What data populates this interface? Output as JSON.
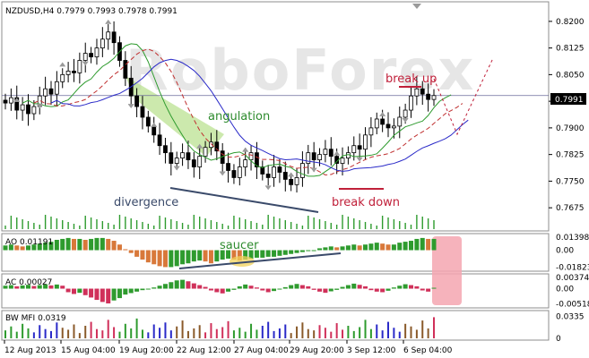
{
  "chart_data": [
    {
      "type": "candlestick",
      "title": "NZDUSD,H4",
      "ohlc": [
        "0.7979",
        "0.7993",
        "0.7978",
        "0.7991"
      ],
      "current_price": "0.7991",
      "ylim": [
        0.763,
        0.824
      ],
      "y_ticks": [
        "0.8200",
        "0.8125",
        "0.8050",
        "0.7975",
        "0.7900",
        "0.7825",
        "0.7750",
        "0.7675"
      ],
      "x_ticks": [
        "12 Aug 2013",
        "15 Aug 04:00",
        "19 Aug 20:00",
        "22 Aug 12:00",
        "27 Aug 04:00",
        "29 Aug 20:00",
        "3 Sep 12:00",
        "6 Sep 04:00"
      ],
      "close": [
        0.797,
        0.7985,
        0.795,
        0.7965,
        0.794,
        0.796,
        0.799,
        0.801,
        0.7995,
        0.803,
        0.805,
        0.806,
        0.8055,
        0.809,
        0.811,
        0.81,
        0.8125,
        0.815,
        0.817,
        0.814,
        0.809,
        0.804,
        0.799,
        0.796,
        0.793,
        0.7905,
        0.788,
        0.785,
        0.783,
        0.78,
        0.7815,
        0.783,
        0.781,
        0.779,
        0.782,
        0.7845,
        0.786,
        0.7835,
        0.78,
        0.778,
        0.776,
        0.779,
        0.781,
        0.783,
        0.779,
        0.777,
        0.776,
        0.779,
        0.7775,
        0.7755,
        0.774,
        0.776,
        0.78,
        0.783,
        0.781,
        0.7825,
        0.784,
        0.782,
        0.78,
        0.7815,
        0.783,
        0.785,
        0.784,
        0.788,
        0.79,
        0.7925,
        0.791,
        0.79,
        0.7905,
        0.793,
        0.795,
        0.799,
        0.801,
        0.7995,
        0.798,
        0.7991
      ],
      "annotations": [
        {
          "text": "break up",
          "color": "#c0203a"
        },
        {
          "text": "angulation",
          "color": "#2e8b2e"
        },
        {
          "text": "divergence",
          "color": "#3a4a6a"
        },
        {
          "text": "break down",
          "color": "#c0203a"
        }
      ],
      "watermark": "RoboForex",
      "colors": {
        "ma_fast": "#2e9b2e",
        "ma_mid": "#c03030",
        "ma_slow": "#2a2ac8",
        "annotation_red": "#c0203a",
        "highlight": "#b6e08a",
        "price_box": "#000000"
      }
    },
    {
      "type": "bar",
      "title": "AO",
      "value": "0.01191",
      "y_ticks": [
        "0.01398",
        "0.00",
        "-0.01823"
      ],
      "ylim": [
        -0.0195,
        0.0148
      ],
      "values": [
        0.005,
        0.006,
        0.005,
        0.004,
        0.005,
        0.006,
        0.007,
        0.008,
        0.009,
        0.011,
        0.012,
        0.013,
        0.012,
        0.012,
        0.011,
        0.012,
        0.013,
        0.013,
        0.012,
        0.01,
        0.006,
        0.001,
        -0.003,
        -0.007,
        -0.01,
        -0.013,
        -0.015,
        -0.017,
        -0.018,
        -0.018,
        -0.017,
        -0.015,
        -0.014,
        -0.012,
        -0.011,
        -0.012,
        -0.014,
        -0.012,
        -0.01,
        -0.009,
        -0.01,
        -0.011,
        -0.01,
        -0.009,
        -0.008,
        -0.008,
        -0.007,
        -0.007,
        -0.006,
        -0.005,
        -0.004,
        -0.003,
        -0.002,
        -0.001,
        0.0,
        0.002,
        0.003,
        0.004,
        0.003,
        0.004,
        0.005,
        0.006,
        0.005,
        0.006,
        0.007,
        0.008,
        0.007,
        0.006,
        0.006,
        0.008,
        0.009,
        0.01,
        0.012,
        0.013,
        0.012,
        0.012
      ],
      "annotation": "saucer",
      "colors": {
        "up": "#2e9b2e",
        "down": "#d8783a",
        "highlight": "#f2d25a",
        "box": "#f4a6b0"
      }
    },
    {
      "type": "bar",
      "title": "AC",
      "value": "0.00027",
      "y_ticks": [
        "0.00374",
        "0.00",
        "-0.00518"
      ],
      "ylim": [
        -0.0056,
        0.0041
      ],
      "values": [
        0.001,
        0.0012,
        0.0008,
        0.0011,
        0.0013,
        0.0009,
        0.0012,
        0.0015,
        0.0011,
        0.0014,
        0.001,
        -0.0012,
        -0.0018,
        -0.0014,
        -0.0022,
        -0.003,
        -0.0038,
        -0.0045,
        -0.005,
        -0.004,
        -0.0032,
        -0.002,
        -0.0015,
        -0.001,
        -0.0005,
        -0.0002,
        0.0004,
        0.001,
        0.0016,
        0.0022,
        0.0028,
        0.003,
        0.0025,
        0.0018,
        0.0012,
        0.0006,
        -0.0006,
        -0.0012,
        -0.0016,
        -0.001,
        -0.0004,
        0.0008,
        0.0014,
        0.001,
        0.0004,
        -0.0006,
        -0.0012,
        -0.0008,
        -0.0003,
        0.0005,
        0.0012,
        0.0016,
        0.0012,
        0.0008,
        -0.0004,
        -0.001,
        -0.0014,
        -0.0009,
        -0.0004,
        0.0006,
        0.0012,
        0.0017,
        0.0013,
        0.0008,
        -0.0005,
        -0.001,
        -0.0012,
        -0.0007,
        0.0004,
        0.001,
        0.0015,
        0.0012,
        0.0008,
        -0.0006,
        -0.001,
        0.0003
      ],
      "colors": {
        "up": "#2e9b2e",
        "down": "#d0305a"
      }
    },
    {
      "type": "bar",
      "title": "BW MFI",
      "value": "0.0319",
      "y_ticks": [
        "0.0335",
        "0"
      ],
      "ylim": [
        0,
        0.038
      ],
      "values": [
        0.012,
        0.018,
        0.01,
        0.022,
        0.015,
        0.009,
        0.02,
        0.014,
        0.011,
        0.024,
        0.016,
        0.013,
        0.021,
        0.008,
        0.019,
        0.025,
        0.014,
        0.012,
        0.028,
        0.017,
        0.01,
        0.022,
        0.015,
        0.03,
        0.013,
        0.009,
        0.021,
        0.016,
        0.024,
        0.012,
        0.018,
        0.027,
        0.011,
        0.015,
        0.02,
        0.009,
        0.023,
        0.014,
        0.017,
        0.026,
        0.012,
        0.016,
        0.01,
        0.022,
        0.013,
        0.019,
        0.025,
        0.011,
        0.015,
        0.021,
        0.008,
        0.018,
        0.024,
        0.014,
        0.012,
        0.02,
        0.016,
        0.01,
        0.023,
        0.013,
        0.019,
        0.011,
        0.017,
        0.028,
        0.014,
        0.021,
        0.012,
        0.025,
        0.016,
        0.01,
        0.022,
        0.018,
        0.013,
        0.027,
        0.015,
        0.032
      ],
      "colors": {
        "green": "#2e9b2e",
        "pink": "#d0305a",
        "blue": "#2a2ac8",
        "brown": "#8a5a2a"
      }
    }
  ]
}
